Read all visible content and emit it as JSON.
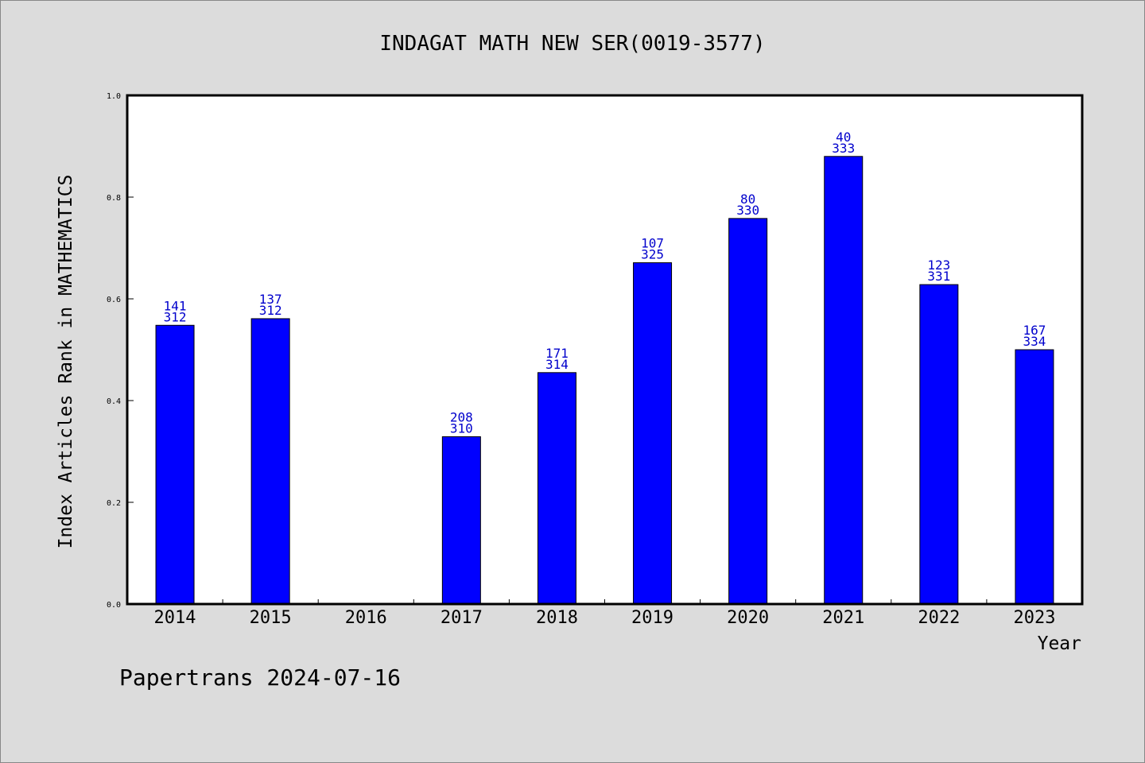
{
  "chart_data": {
    "type": "bar",
    "title": "INDAGAT MATH NEW SER(0019-3577)",
    "xlabel": "Year",
    "ylabel": "Index Articles Rank in MATHEMATICS",
    "ylim": [
      0.0,
      1.0
    ],
    "yticks": [
      "0.0",
      "0.2",
      "0.4",
      "0.6",
      "0.8",
      "1.0"
    ],
    "categories": [
      "2014",
      "2015",
      "2016",
      "2017",
      "2018",
      "2019",
      "2020",
      "2021",
      "2022",
      "2023"
    ],
    "values": [
      0.548,
      0.561,
      null,
      0.329,
      0.455,
      0.671,
      0.758,
      0.88,
      0.628,
      0.5
    ],
    "rank": [
      "141",
      "137",
      "",
      "208",
      "171",
      "107",
      "80",
      "40",
      "123",
      "167"
    ],
    "total": [
      "312",
      "312",
      "",
      "310",
      "314",
      "325",
      "330",
      "333",
      "331",
      "334"
    ],
    "grid": false,
    "bar_color": "#0000ff",
    "label_color": "#0000cc"
  },
  "footer": "Papertrans 2024-07-16"
}
